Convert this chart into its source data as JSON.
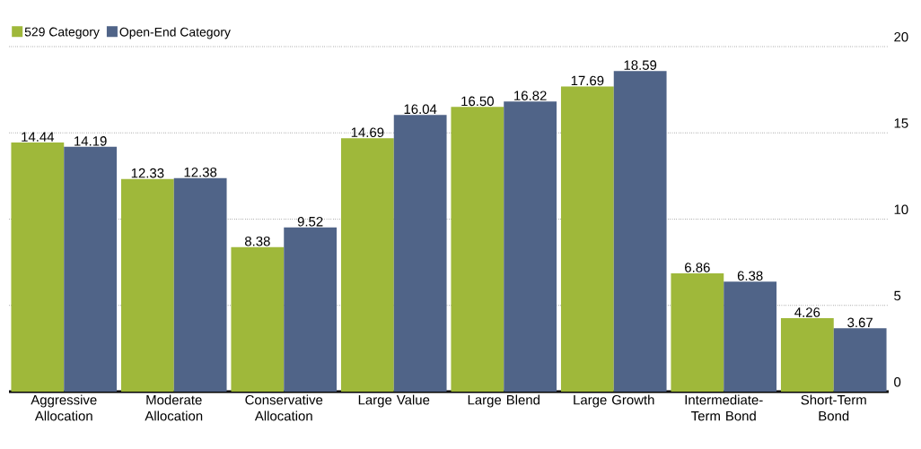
{
  "chart_data": {
    "type": "bar",
    "categories": [
      "Aggressive Allocation",
      "Moderate Allocation",
      "Conservative Allocation",
      "Large Value",
      "Large Blend",
      "Large Growth",
      "Intermediate-Term Bond",
      "Short-Term Bond"
    ],
    "series": [
      {
        "name": "529 Category",
        "color": "#9fb83a",
        "values": [
          14.44,
          12.33,
          8.38,
          14.69,
          16.5,
          17.69,
          6.86,
          4.26
        ],
        "value_labels": [
          "14.44",
          "12.33",
          "8.38",
          "14.69",
          "16.50",
          "17.69",
          "6.86",
          "4.26"
        ]
      },
      {
        "name": "Open-End Category",
        "color": "#506488",
        "values": [
          14.19,
          12.38,
          9.52,
          16.04,
          16.82,
          18.59,
          6.38,
          3.67
        ],
        "value_labels": [
          "14.19",
          "12.38",
          "9.52",
          "16.04",
          "16.82",
          "18.59",
          "6.38",
          "3.67"
        ]
      }
    ],
    "ylim": [
      0,
      20
    ],
    "yticks": [
      0,
      5,
      10,
      15,
      20
    ],
    "grid": "y",
    "legend": "top left"
  }
}
